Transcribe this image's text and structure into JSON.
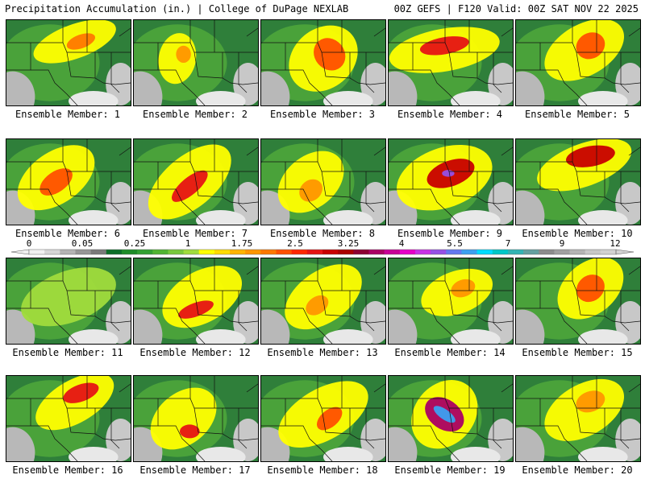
{
  "header": {
    "left": "Precipitation Accumulation (in.) | College of DuPage NEXLAB",
    "right": "00Z GEFS | F120 Valid: 00Z SAT NOV 22 2025"
  },
  "colorbar": {
    "labels": [
      "0",
      "0.05",
      "0.25",
      "1",
      "1.75",
      "2.5",
      "3.25",
      "4",
      "5.5",
      "7",
      "9",
      "12"
    ],
    "colors": [
      "#f0f0f0",
      "#d6d6d6",
      "#b4b4b4",
      "#969696",
      "#7a7a7a",
      "#0c6e28",
      "#1e8c28",
      "#32a032",
      "#50b432",
      "#78c83c",
      "#a0dc3c",
      "#ffff00",
      "#ffdc00",
      "#ffb400",
      "#ff9600",
      "#ff7800",
      "#ff5000",
      "#ff2800",
      "#e61414",
      "#c80000",
      "#aa0000",
      "#8c0032",
      "#aa0064",
      "#c80096",
      "#e600c8",
      "#c832e6",
      "#9650e6",
      "#6478f0",
      "#3ca0f0",
      "#00dcff",
      "#00c8c8",
      "#32b4b4",
      "#64a0a0",
      "#8c8c8c",
      "#a0a0a0",
      "#b4b4b4",
      "#c8c8c8",
      "#d2d2d2"
    ]
  },
  "members": [
    {
      "label": "Ensemble Member: 1"
    },
    {
      "label": "Ensemble Member: 2"
    },
    {
      "label": "Ensemble Member: 3"
    },
    {
      "label": "Ensemble Member: 4"
    },
    {
      "label": "Ensemble Member: 5"
    },
    {
      "label": "Ensemble Member: 6"
    },
    {
      "label": "Ensemble Member: 7"
    },
    {
      "label": "Ensemble Member: 8"
    },
    {
      "label": "Ensemble Member: 9"
    },
    {
      "label": "Ensemble Member: 10"
    },
    {
      "label": "Ensemble Member: 11"
    },
    {
      "label": "Ensemble Member: 12"
    },
    {
      "label": "Ensemble Member: 13"
    },
    {
      "label": "Ensemble Member: 14"
    },
    {
      "label": "Ensemble Member: 15"
    },
    {
      "label": "Ensemble Member: 16"
    },
    {
      "label": "Ensemble Member: 17"
    },
    {
      "label": "Ensemble Member: 18"
    },
    {
      "label": "Ensemble Member: 19"
    },
    {
      "label": "Ensemble Member: 20"
    }
  ]
}
